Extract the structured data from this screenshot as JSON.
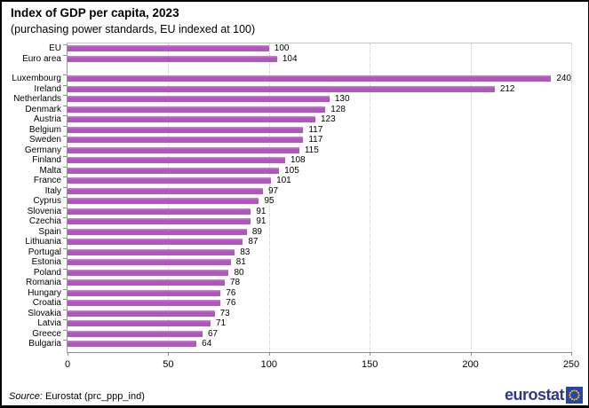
{
  "header": {
    "title": "Index of GDP per capita, 2023",
    "subtitle": "(purchasing power standards, EU indexed at 100)"
  },
  "chart_data": {
    "type": "bar",
    "orientation": "horizontal",
    "title": "Index of GDP per capita, 2023",
    "subtitle": "(purchasing power standards, EU indexed at 100)",
    "xlabel": "",
    "ylabel": "",
    "xlim": [
      0,
      250
    ],
    "xticks": [
      0,
      50,
      100,
      150,
      200,
      250
    ],
    "grid": "vertical-dotted",
    "legend": "none",
    "bar_color": "#b156bc",
    "groups": [
      {
        "name": "aggregates",
        "categories": [
          "EU",
          "Euro area"
        ],
        "values": [
          100,
          104
        ]
      },
      {
        "name": "countries",
        "categories": [
          "Luxembourg",
          "Ireland",
          "Netherlands",
          "Denmark",
          "Austria",
          "Belgium",
          "Sweden",
          "Germany",
          "Finland",
          "Malta",
          "France",
          "Italy",
          "Cyprus",
          "Slovenia",
          "Czechia",
          "Spain",
          "Lithuania",
          "Portugal",
          "Estonia",
          "Poland",
          "Romania",
          "Hungary",
          "Croatia",
          "Slovakia",
          "Latvia",
          "Greece",
          "Bulgaria"
        ],
        "values": [
          240,
          212,
          130,
          128,
          123,
          117,
          117,
          115,
          108,
          105,
          101,
          97,
          95,
          91,
          91,
          89,
          87,
          83,
          81,
          80,
          78,
          76,
          76,
          73,
          71,
          67,
          64
        ]
      }
    ]
  },
  "footer": {
    "source_prefix": "Source:",
    "source_text": " Eurostat (prc_ppp_ind)",
    "logo_text": "eurostat"
  },
  "colors": {
    "bar": "#b156bc",
    "bar_top_edge": "#c47fcb",
    "grid": "#c9c9c9",
    "axis": "#8c8c8c",
    "logo_text_blue": "#31388c",
    "logo_square_blue": "#2547a8",
    "logo_star_gold": "#ffcc00"
  }
}
